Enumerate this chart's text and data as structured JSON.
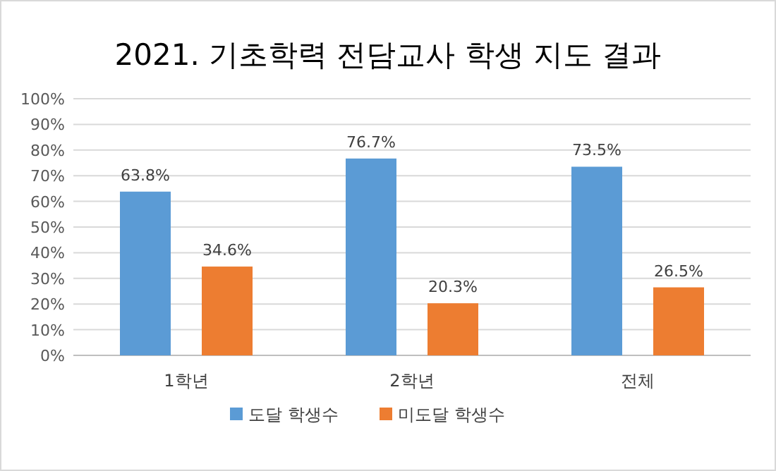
{
  "chart_data": {
    "type": "bar",
    "title": "2021. 기초학력 전담교사 학생 지도 결과",
    "categories": [
      "1학년",
      "2학년",
      "전체"
    ],
    "series": [
      {
        "name": "도달 학생수",
        "color": "#5b9bd5",
        "values": [
          63.8,
          76.7,
          73.5
        ],
        "value_labels": [
          "63.8%",
          "76.7%",
          "73.5%"
        ]
      },
      {
        "name": "미도달 학생수",
        "color": "#ed7d31",
        "values": [
          34.6,
          20.3,
          26.5
        ],
        "value_labels": [
          "34.6%",
          "20.3%",
          "26.5%"
        ]
      }
    ],
    "ylim": [
      0,
      100
    ],
    "yticks": [
      {
        "value": 0,
        "label": "0%"
      },
      {
        "value": 10,
        "label": "10%"
      },
      {
        "value": 20,
        "label": "20%"
      },
      {
        "value": 30,
        "label": "30%"
      },
      {
        "value": 40,
        "label": "40%"
      },
      {
        "value": 50,
        "label": "50%"
      },
      {
        "value": 60,
        "label": "60%"
      },
      {
        "value": 70,
        "label": "70%"
      },
      {
        "value": 80,
        "label": "80%"
      },
      {
        "value": 90,
        "label": "90%"
      },
      {
        "value": 100,
        "label": "100%"
      }
    ],
    "grid": "y",
    "legend": "bottom"
  }
}
